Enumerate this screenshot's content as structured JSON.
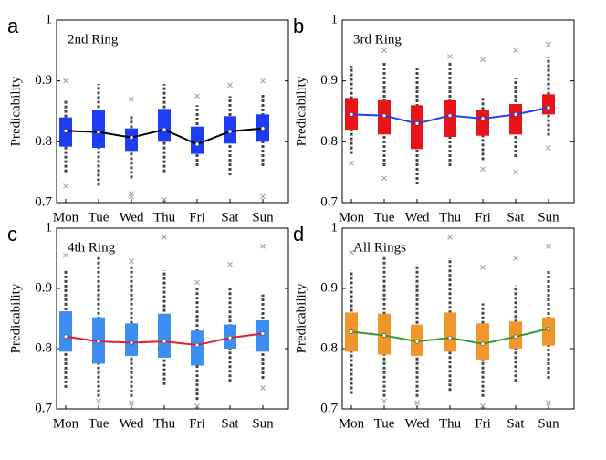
{
  "chart_data": [
    {
      "type": "box",
      "panel_label": "a",
      "title": "2nd Ring",
      "ylabel": "Predicability",
      "categories": [
        "Mon",
        "Tue",
        "Wed",
        "Thu",
        "Fri",
        "Sat",
        "Sun"
      ],
      "ylim": [
        0.7,
        1
      ],
      "yticks": [
        0.7,
        0.8,
        0.9,
        1
      ],
      "box_color": "#1f3cf5",
      "line_color": "#000000",
      "boxes": [
        {
          "whisker_low": 0.75,
          "q1": 0.792,
          "median": 0.818,
          "q3": 0.84,
          "whisker_high": 0.87,
          "outliers": [
            0.727,
            0.9
          ]
        },
        {
          "whisker_low": 0.728,
          "q1": 0.79,
          "median": 0.816,
          "q3": 0.852,
          "whisker_high": 0.895,
          "outliers": []
        },
        {
          "whisker_low": 0.74,
          "q1": 0.785,
          "median": 0.807,
          "q3": 0.822,
          "whisker_high": 0.845,
          "outliers": [
            0.71,
            0.715,
            0.87
          ]
        },
        {
          "whisker_low": 0.75,
          "q1": 0.8,
          "median": 0.82,
          "q3": 0.854,
          "whisker_high": 0.895,
          "outliers": [
            0.705
          ]
        },
        {
          "whisker_low": 0.76,
          "q1": 0.78,
          "median": 0.796,
          "q3": 0.825,
          "whisker_high": 0.86,
          "outliers": [
            0.875
          ]
        },
        {
          "whisker_low": 0.745,
          "q1": 0.797,
          "median": 0.817,
          "q3": 0.842,
          "whisker_high": 0.875,
          "outliers": [
            0.893
          ]
        },
        {
          "whisker_low": 0.76,
          "q1": 0.8,
          "median": 0.822,
          "q3": 0.845,
          "whisker_high": 0.88,
          "outliers": [
            0.71,
            0.9
          ]
        }
      ]
    },
    {
      "type": "box",
      "panel_label": "b",
      "title": "3rd Ring",
      "ylabel": "Predicability",
      "categories": [
        "Mon",
        "Tue",
        "Wed",
        "Thu",
        "Fri",
        "Sat",
        "Sun"
      ],
      "ylim": [
        0.7,
        1
      ],
      "yticks": [
        0.7,
        0.8,
        0.9,
        1
      ],
      "box_color": "#e8141a",
      "line_color": "#2b3ee6",
      "boxes": [
        {
          "whisker_low": 0.78,
          "q1": 0.82,
          "median": 0.845,
          "q3": 0.872,
          "whisker_high": 0.925,
          "outliers": [
            0.765
          ]
        },
        {
          "whisker_low": 0.76,
          "q1": 0.812,
          "median": 0.843,
          "q3": 0.868,
          "whisker_high": 0.93,
          "outliers": [
            0.74,
            0.95
          ]
        },
        {
          "whisker_low": 0.73,
          "q1": 0.788,
          "median": 0.83,
          "q3": 0.86,
          "whisker_high": 0.925,
          "outliers": []
        },
        {
          "whisker_low": 0.76,
          "q1": 0.808,
          "median": 0.843,
          "q3": 0.868,
          "whisker_high": 0.93,
          "outliers": [
            0.94
          ]
        },
        {
          "whisker_low": 0.77,
          "q1": 0.81,
          "median": 0.838,
          "q3": 0.852,
          "whisker_high": 0.875,
          "outliers": [
            0.755,
            0.935
          ]
        },
        {
          "whisker_low": 0.775,
          "q1": 0.812,
          "median": 0.845,
          "q3": 0.862,
          "whisker_high": 0.905,
          "outliers": [
            0.75,
            0.95
          ]
        },
        {
          "whisker_low": 0.81,
          "q1": 0.845,
          "median": 0.856,
          "q3": 0.878,
          "whisker_high": 0.94,
          "outliers": [
            0.79,
            0.96
          ]
        }
      ]
    },
    {
      "type": "box",
      "panel_label": "c",
      "title": "4th Ring",
      "ylabel": "Predicability",
      "categories": [
        "Mon",
        "Tue",
        "Wed",
        "Thu",
        "Fri",
        "Sat",
        "Sun"
      ],
      "ylim": [
        0.7,
        1
      ],
      "yticks": [
        0.7,
        0.8,
        0.9,
        1
      ],
      "box_color": "#3d8ef0",
      "line_color": "#e0202a",
      "boxes": [
        {
          "whisker_low": 0.735,
          "q1": 0.795,
          "median": 0.82,
          "q3": 0.862,
          "whisker_high": 0.93,
          "outliers": [
            0.955
          ]
        },
        {
          "whisker_low": 0.72,
          "q1": 0.775,
          "median": 0.812,
          "q3": 0.852,
          "whisker_high": 0.955,
          "outliers": [
            0.713
          ]
        },
        {
          "whisker_low": 0.72,
          "q1": 0.788,
          "median": 0.81,
          "q3": 0.842,
          "whisker_high": 0.94,
          "outliers": [
            0.71,
            0.945
          ]
        },
        {
          "whisker_low": 0.74,
          "q1": 0.785,
          "median": 0.812,
          "q3": 0.858,
          "whisker_high": 0.93,
          "outliers": [
            0.985
          ]
        },
        {
          "whisker_low": 0.715,
          "q1": 0.772,
          "median": 0.806,
          "q3": 0.83,
          "whisker_high": 0.9,
          "outliers": [
            0.705,
            0.91
          ]
        },
        {
          "whisker_low": 0.745,
          "q1": 0.8,
          "median": 0.818,
          "q3": 0.84,
          "whisker_high": 0.9,
          "outliers": [
            0.94
          ]
        },
        {
          "whisker_low": 0.75,
          "q1": 0.795,
          "median": 0.825,
          "q3": 0.847,
          "whisker_high": 0.89,
          "outliers": [
            0.735,
            0.97
          ]
        }
      ]
    },
    {
      "type": "box",
      "panel_label": "d",
      "title": "All Rings",
      "ylabel": "Predicability",
      "categories": [
        "Mon",
        "Tue",
        "Wed",
        "Thu",
        "Fri",
        "Sat",
        "Sun"
      ],
      "ylim": [
        0.7,
        1
      ],
      "yticks": [
        0.7,
        0.8,
        0.9,
        1
      ],
      "box_color": "#f0962a",
      "line_color": "#3a9a2e",
      "boxes": [
        {
          "whisker_low": 0.725,
          "q1": 0.795,
          "median": 0.828,
          "q3": 0.86,
          "whisker_high": 0.93,
          "outliers": [
            0.96
          ]
        },
        {
          "whisker_low": 0.72,
          "q1": 0.79,
          "median": 0.822,
          "q3": 0.858,
          "whisker_high": 0.955,
          "outliers": [
            0.713
          ]
        },
        {
          "whisker_low": 0.72,
          "q1": 0.788,
          "median": 0.812,
          "q3": 0.84,
          "whisker_high": 0.94,
          "outliers": [
            0.71
          ]
        },
        {
          "whisker_low": 0.73,
          "q1": 0.795,
          "median": 0.818,
          "q3": 0.86,
          "whisker_high": 0.95,
          "outliers": [
            0.985
          ]
        },
        {
          "whisker_low": 0.72,
          "q1": 0.782,
          "median": 0.808,
          "q3": 0.842,
          "whisker_high": 0.875,
          "outliers": [
            0.705,
            0.935
          ]
        },
        {
          "whisker_low": 0.745,
          "q1": 0.8,
          "median": 0.82,
          "q3": 0.845,
          "whisker_high": 0.905,
          "outliers": [
            0.95
          ]
        },
        {
          "whisker_low": 0.75,
          "q1": 0.805,
          "median": 0.833,
          "q3": 0.852,
          "whisker_high": 0.93,
          "outliers": [
            0.71,
            0.97
          ]
        }
      ]
    }
  ]
}
